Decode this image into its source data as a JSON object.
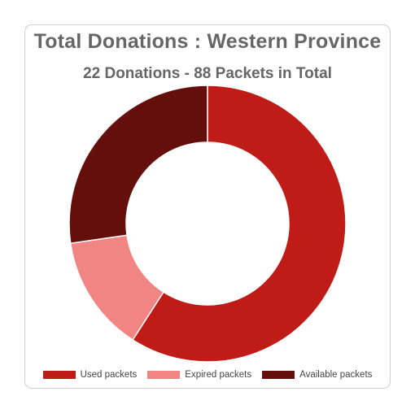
{
  "chart_data": {
    "type": "pie",
    "donut": true,
    "title": "Total Donations : Western Province",
    "subtitle": "22 Donations - 88 Packets in Total",
    "categories": [
      "Used packets",
      "Expired packets",
      "Available packets"
    ],
    "values": [
      52,
      12,
      24
    ],
    "colors": [
      "#bf1b17",
      "#f08583",
      "#640f0c"
    ],
    "legend_position": "bottom"
  }
}
